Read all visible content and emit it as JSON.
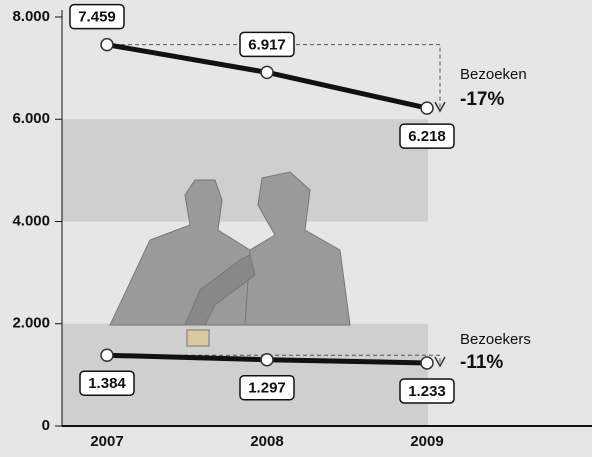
{
  "chart_data": {
    "type": "line",
    "categories": [
      "2007",
      "2008",
      "2009"
    ],
    "series": [
      {
        "name": "Bezoeken",
        "color": "#111111",
        "values": [
          7459,
          6917,
          6218
        ],
        "value_labels": [
          "7.459",
          "6.917",
          "6.218"
        ],
        "change": "-17%"
      },
      {
        "name": "Bezoekers",
        "color": "#111111",
        "values": [
          1384,
          1297,
          1233
        ],
        "value_labels": [
          "1.384",
          "1.297",
          "1.233"
        ],
        "change": "-11%"
      }
    ],
    "ylim": [
      0,
      8000
    ],
    "yticks": [
      0,
      {
        "value": 2000,
        "label": "2.000"
      },
      {
        "value": 4000,
        "label": "4.000"
      },
      {
        "value": 6000,
        "label": "6.000"
      },
      {
        "value": 8000,
        "label": "8.000"
      }
    ],
    "grid": true
  }
}
